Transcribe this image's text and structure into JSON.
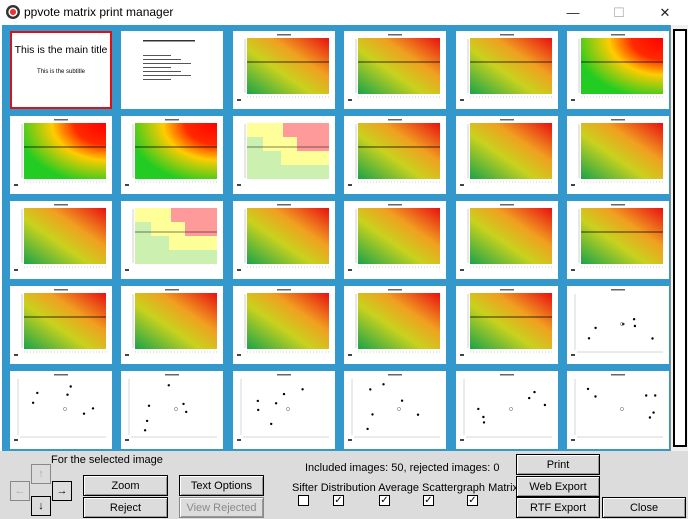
{
  "window": {
    "title": "ppvote matrix print manager",
    "minimize": "—",
    "maximize": "☐",
    "close": "✕"
  },
  "title_page": {
    "main_title": "This is the main title",
    "subtitle": "This is the subtitle"
  },
  "controls": {
    "selected_label": "For the selected image",
    "zoom": "Zoom",
    "reject": "Reject",
    "text_options": "Text Options",
    "view_rejected": "View Rejected",
    "counts": "Included images: 50, rejected images: 0",
    "include_label": "Sifter Distribution Average Scattergraph Matrix",
    "checkboxes": [
      {
        "name": "Sifter",
        "checked": false
      },
      {
        "name": "Distribution",
        "checked": true
      },
      {
        "name": "Average",
        "checked": true
      },
      {
        "name": "Scattergraph",
        "checked": true
      },
      {
        "name": "Matrix",
        "checked": true
      }
    ],
    "print": "Print",
    "web_export": "Web Export",
    "rtf_export": "RTF Export",
    "close": "Close",
    "arrow_up": "↑",
    "arrow_left": "←",
    "arrow_right": "→",
    "arrow_down": "↓"
  },
  "thumbnails": [
    {
      "kind": "title"
    },
    {
      "kind": "text"
    },
    {
      "kind": "gradient"
    },
    {
      "kind": "gradient"
    },
    {
      "kind": "gradient"
    },
    {
      "kind": "hot"
    },
    {
      "kind": "hot"
    },
    {
      "kind": "hot"
    },
    {
      "kind": "blocks"
    },
    {
      "kind": "gradient"
    },
    {
      "kind": "gradient-noline"
    },
    {
      "kind": "gradient-noline"
    },
    {
      "kind": "gradient-noline"
    },
    {
      "kind": "blocks"
    },
    {
      "kind": "gradient-noline"
    },
    {
      "kind": "gradient-noline"
    },
    {
      "kind": "gradient-noline"
    },
    {
      "kind": "gradient"
    },
    {
      "kind": "gradient"
    },
    {
      "kind": "gradient-noline"
    },
    {
      "kind": "gradient-noline"
    },
    {
      "kind": "gradient-noline"
    },
    {
      "kind": "gradient"
    },
    {
      "kind": "scatter"
    },
    {
      "kind": "scatter"
    },
    {
      "kind": "scatter"
    },
    {
      "kind": "scatter"
    },
    {
      "kind": "scatter"
    },
    {
      "kind": "scatter"
    },
    {
      "kind": "scatter"
    }
  ]
}
